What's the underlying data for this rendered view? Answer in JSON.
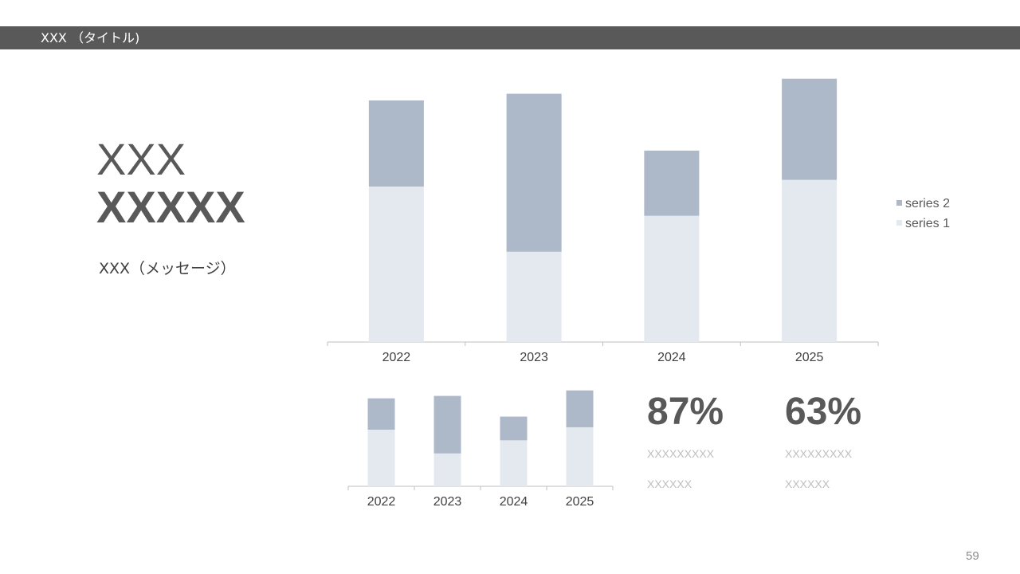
{
  "header": {
    "title": "XXX （タイトル)"
  },
  "main": {
    "heading_line1": "XXX",
    "heading_line2": "XXXXX",
    "message": "XXX（メッセージ）"
  },
  "colors": {
    "series1": "#e4e9f0",
    "series2": "#adb8c9",
    "title_bar": "#595959",
    "axis": "#bfbfbf"
  },
  "chart_data": [
    {
      "type": "bar",
      "stacked": true,
      "categories": [
        "2022",
        "2023",
        "2024",
        "2025"
      ],
      "series": [
        {
          "name": "series 1",
          "values": [
            186,
            108,
            151,
            194
          ]
        },
        {
          "name": "series 2",
          "values": [
            103,
            189,
            78,
            121
          ]
        }
      ],
      "ylim": [
        0,
        330
      ],
      "legend": "right",
      "grid": false
    },
    {
      "type": "bar",
      "stacked": true,
      "categories": [
        "2022",
        "2023",
        "2024",
        "2025"
      ],
      "series": [
        {
          "name": "series 1",
          "values": [
            186,
            108,
            151,
            194
          ]
        },
        {
          "name": "series 2",
          "values": [
            103,
            189,
            78,
            121
          ]
        }
      ],
      "ylim": [
        0,
        330
      ],
      "legend": "none",
      "grid": false
    }
  ],
  "kpis": [
    {
      "value": "87%",
      "line1": "XXXXXXXXX",
      "line2": "XXXXXX"
    },
    {
      "value": "63%",
      "line1": "XXXXXXXXX",
      "line2": "XXXXXX"
    }
  ],
  "page_number": "59"
}
